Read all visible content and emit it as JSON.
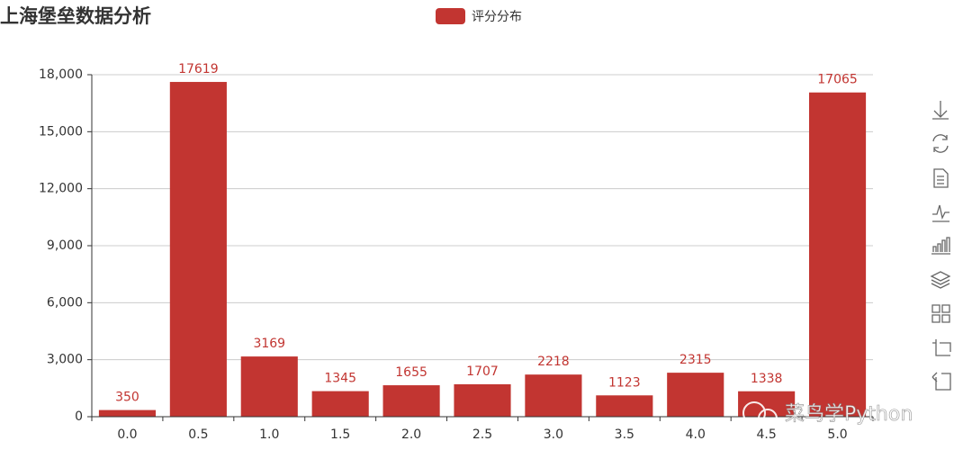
{
  "chart_data": {
    "type": "bar",
    "title": "上海堡垒数据分析",
    "series": [
      {
        "name": "评分分布",
        "color": "#c23531",
        "values": [
          350,
          17619,
          3169,
          1345,
          1655,
          1707,
          2218,
          1123,
          2315,
          1338,
          17065
        ]
      }
    ],
    "categories": [
      "0.0",
      "0.5",
      "1.0",
      "1.5",
      "2.0",
      "2.5",
      "3.0",
      "3.5",
      "4.0",
      "4.5",
      "5.0"
    ],
    "ylim": [
      0,
      18000
    ],
    "yticks": [
      0,
      {
        "value": 3000,
        "label": "3,000"
      },
      {
        "value": 6000,
        "label": "6,000"
      },
      {
        "value": 9000,
        "label": "9,000"
      },
      {
        "value": 12000,
        "label": "12,000"
      },
      {
        "value": 15000,
        "label": "15,000"
      },
      {
        "value": 18000,
        "label": "18,000"
      }
    ],
    "grid": true,
    "legend_position": "top",
    "watermark": "菜鸟学Python"
  }
}
